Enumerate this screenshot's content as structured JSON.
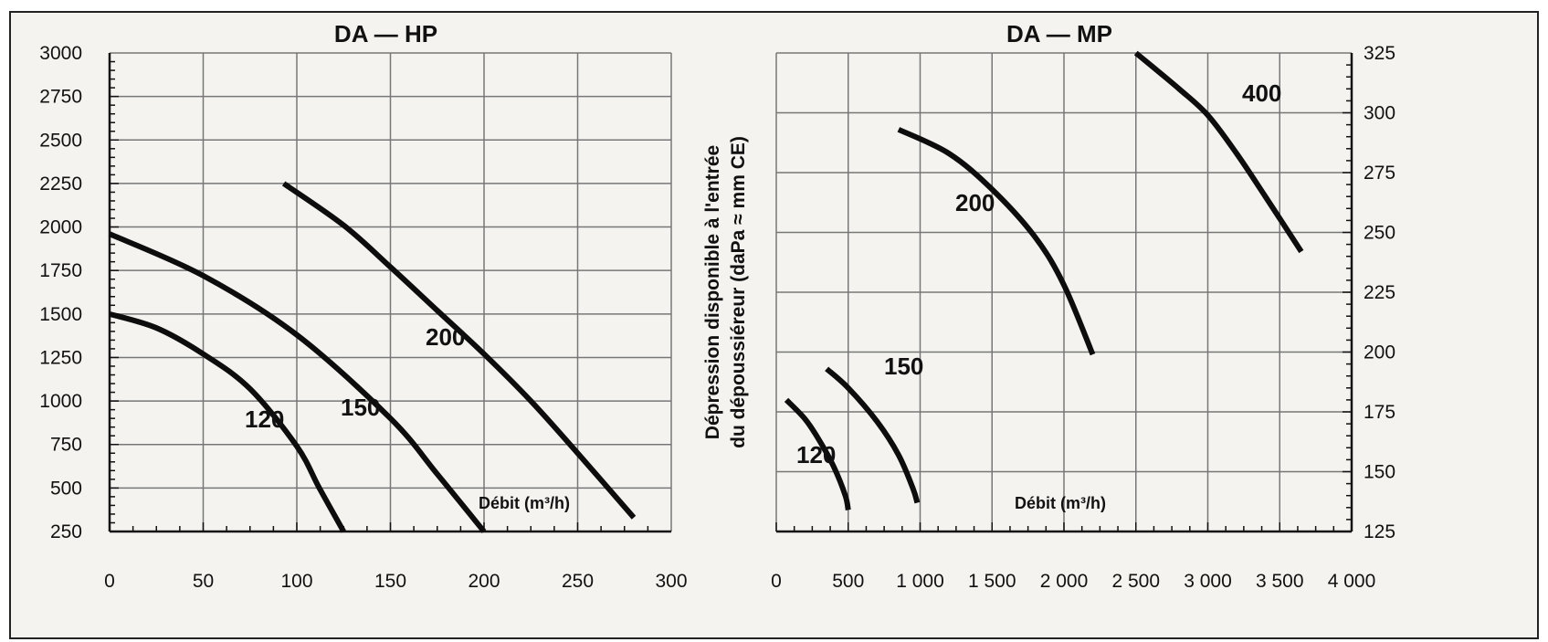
{
  "ylabel_lines": [
    "Dépression disponible à l'entrée",
    "du dépoussiéreur (daPa ≈ mm CE)"
  ],
  "chart_data": [
    {
      "type": "line",
      "title": "DA — HP",
      "xlabel": "Débit (m³/h)",
      "ylabel": "",
      "xlim": [
        0,
        300
      ],
      "ylim": [
        250,
        3000
      ],
      "x_ticks": [
        "0",
        "50",
        "100",
        "150",
        "200",
        "250",
        "300"
      ],
      "y_ticks": [
        "250",
        "500",
        "750",
        "1000",
        "1250",
        "1500",
        "1750",
        "2000",
        "2250",
        "2500",
        "2750",
        "3000"
      ],
      "grid": true,
      "series": [
        {
          "name": "120",
          "x": [
            0,
            25,
            50,
            75,
            100,
            112,
            125
          ],
          "y": [
            1500,
            1420,
            1270,
            1070,
            740,
            500,
            250
          ]
        },
        {
          "name": "150",
          "x": [
            0,
            50,
            100,
            150,
            175,
            200
          ],
          "y": [
            1960,
            1720,
            1380,
            900,
            580,
            250
          ]
        },
        {
          "name": "200",
          "x": [
            93,
            125,
            150,
            175,
            200,
            225,
            250,
            280
          ],
          "y": [
            2250,
            2010,
            1770,
            1520,
            1270,
            1000,
            700,
            330
          ]
        }
      ]
    },
    {
      "type": "line",
      "title": "DA — MP",
      "xlabel": "Débit (m³/h)",
      "ylabel": "",
      "xlim": [
        0,
        4000
      ],
      "ylim": [
        125,
        325
      ],
      "x_ticks": [
        "0",
        "500",
        "1 000",
        "1 500",
        "2 000",
        "2 500",
        "3 000",
        "3 500",
        "4 000"
      ],
      "y_ticks": [
        "125",
        "150",
        "175",
        "200",
        "225",
        "250",
        "275",
        "300",
        "325"
      ],
      "y_axis_side": "right",
      "grid": true,
      "series": [
        {
          "name": "120",
          "x": [
            70,
            200,
            300,
            400,
            480,
            500
          ],
          "y": [
            180,
            172,
            163,
            152,
            140,
            134
          ]
        },
        {
          "name": "150",
          "x": [
            350,
            500,
            700,
            850,
            950,
            980
          ],
          "y": [
            193,
            185,
            171,
            157,
            143,
            137
          ]
        },
        {
          "name": "200",
          "x": [
            850,
            1200,
            1500,
            1800,
            2000,
            2200
          ],
          "y": [
            293,
            283,
            268,
            248,
            228,
            199
          ]
        },
        {
          "name": "400",
          "x": [
            2500,
            2800,
            3000,
            3200,
            3400,
            3650
          ],
          "y": [
            325,
            310,
            299,
            283,
            265,
            242
          ]
        }
      ]
    }
  ]
}
